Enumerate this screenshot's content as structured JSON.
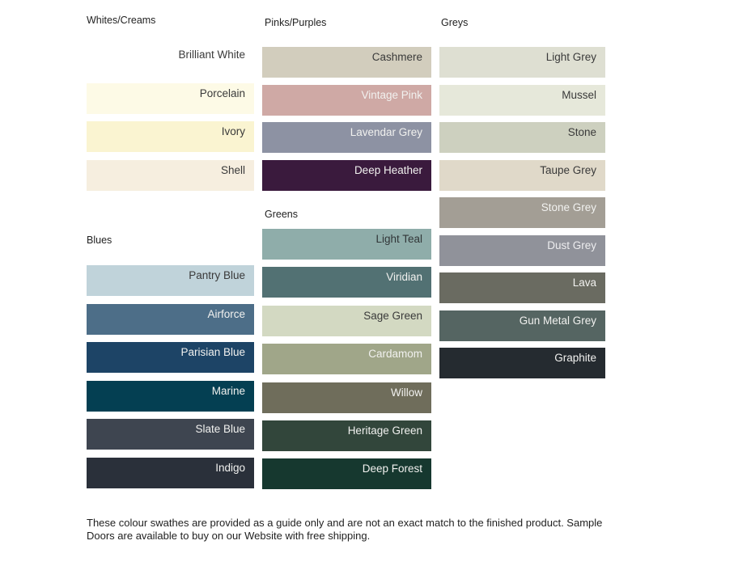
{
  "sections": [
    {
      "heading": "Whites/Creams",
      "swatches": [
        {
          "name": "Brilliant White",
          "bg": "#ffffff",
          "fg": "#3a3a3a"
        },
        {
          "name": "Porcelain",
          "bg": "#fdfae6",
          "fg": "#3a3a3a"
        },
        {
          "name": "Ivory",
          "bg": "#faf4d1",
          "fg": "#3a3a3a"
        },
        {
          "name": "Shell",
          "bg": "#f6eedf",
          "fg": "#3a3a3a"
        }
      ]
    },
    {
      "heading": "Blues",
      "swatches": [
        {
          "name": "Pantry Blue",
          "bg": "#c0d3da",
          "fg": "#3a3a3a"
        },
        {
          "name": "Airforce",
          "bg": "#4d6e88",
          "fg": "#f1f1ef"
        },
        {
          "name": "Parisian Blue",
          "bg": "#1d4466",
          "fg": "#f1f1ef"
        },
        {
          "name": "Marine",
          "bg": "#043f52",
          "fg": "#f1f1ef"
        },
        {
          "name": "Slate Blue",
          "bg": "#3e4550",
          "fg": "#f1f1ef"
        },
        {
          "name": "Indigo",
          "bg": "#2a303a",
          "fg": "#f1f1ef"
        }
      ]
    },
    {
      "heading": "Pinks/Purples",
      "swatches": [
        {
          "name": "Cashmere",
          "bg": "#d2cdbd",
          "fg": "#3a3a3a"
        },
        {
          "name": "Vintage Pink",
          "bg": "#cfa9a5",
          "fg": "#f1f1ef"
        },
        {
          "name": "Lavendar Grey",
          "bg": "#8d92a3",
          "fg": "#f1f1ef"
        },
        {
          "name": "Deep Heather",
          "bg": "#3a1a3d",
          "fg": "#f1f1ef"
        }
      ]
    },
    {
      "heading": "Greens",
      "swatches": [
        {
          "name": "Light Teal",
          "bg": "#8fadaa",
          "fg": "#313638"
        },
        {
          "name": "Viridian",
          "bg": "#527173",
          "fg": "#f1f1ef"
        },
        {
          "name": "Sage Green",
          "bg": "#d3d9c2",
          "fg": "#3a3a3a"
        },
        {
          "name": "Cardamom",
          "bg": "#a0a689",
          "fg": "#f1f1ef"
        },
        {
          "name": "Willow",
          "bg": "#6f6d5b",
          "fg": "#f1f1ef"
        },
        {
          "name": "Heritage Green",
          "bg": "#32463b",
          "fg": "#f1f1ef"
        },
        {
          "name": "Deep Forest",
          "bg": "#16382f",
          "fg": "#f1f1ef"
        }
      ]
    },
    {
      "heading": "Greys",
      "swatches": [
        {
          "name": "Light Grey",
          "bg": "#dedfd2",
          "fg": "#3a3a3a"
        },
        {
          "name": "Mussel",
          "bg": "#e6e8da",
          "fg": "#3a3a3a"
        },
        {
          "name": "Stone",
          "bg": "#cdd0bf",
          "fg": "#3a3a3a"
        },
        {
          "name": "Taupe Grey",
          "bg": "#e0d9c9",
          "fg": "#3a3a3a"
        },
        {
          "name": "Stone Grey",
          "bg": "#a39e95",
          "fg": "#f1f1ef"
        },
        {
          "name": "Dust Grey",
          "bg": "#90929a",
          "fg": "#ededef"
        },
        {
          "name": "Lava",
          "bg": "#6a6b61",
          "fg": "#f1f1ef"
        },
        {
          "name": "Gun Metal Grey",
          "bg": "#556562",
          "fg": "#f1f1ef"
        },
        {
          "name": "Graphite",
          "bg": "#252b30",
          "fg": "#f1f1ef"
        }
      ]
    }
  ],
  "footer": {
    "lines": [
      "These colour swathes are provided as a guide only and are not an exact match to the finished product.  Sample",
      "Doors are available to buy on our Website with free shipping."
    ]
  }
}
